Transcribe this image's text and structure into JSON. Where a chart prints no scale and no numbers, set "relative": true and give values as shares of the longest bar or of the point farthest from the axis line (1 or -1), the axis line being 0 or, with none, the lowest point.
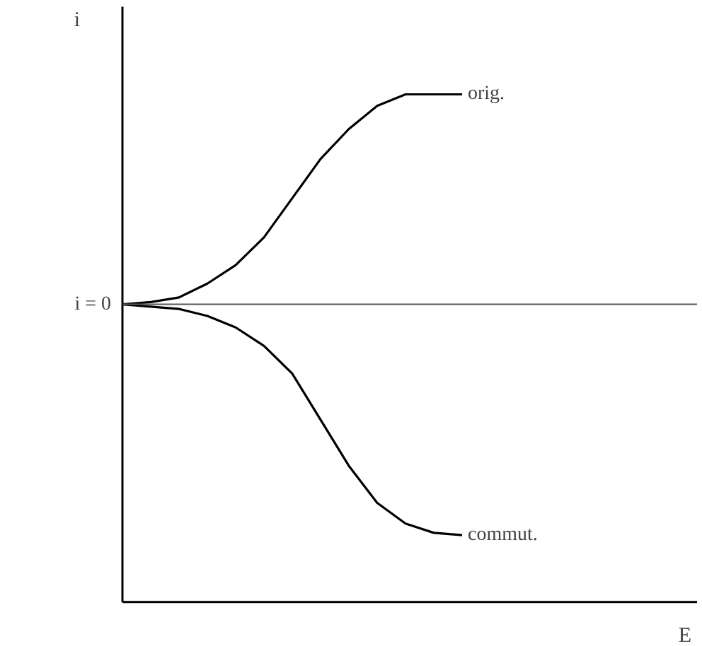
{
  "chart_data": {
    "type": "line",
    "relative": true,
    "xlabel": "E",
    "ylabel": "i",
    "grid": false,
    "marker": "none",
    "line_style": "solid",
    "categories": [
      null,
      null,
      null,
      null,
      null,
      null,
      null,
      null,
      null,
      null,
      null,
      null,
      null,
      null,
      null,
      null,
      null,
      null,
      null,
      null,
      null
    ],
    "series": [
      {
        "name": "orig.",
        "color": "#000000",
        "values": [
          0,
          0.01,
          0.03,
          0.09,
          0.17,
          0.29,
          0.46,
          0.63,
          0.76,
          0.86,
          0.91,
          0.91,
          0.91,
          null,
          null,
          null,
          null,
          null,
          null,
          null,
          null
        ]
      },
      {
        "name": "commut.",
        "color": "#000000",
        "values": [
          0,
          -0.01,
          -0.02,
          -0.05,
          -0.1,
          -0.18,
          -0.3,
          -0.5,
          -0.7,
          -0.86,
          -0.95,
          -0.99,
          -1.0,
          null,
          null,
          null,
          null,
          null,
          null,
          null,
          null
        ]
      }
    ],
    "ref_lines": [
      {
        "axis": "y",
        "value": 0,
        "label": "i = 0",
        "color": "#555555",
        "line_style": "solid"
      }
    ]
  }
}
